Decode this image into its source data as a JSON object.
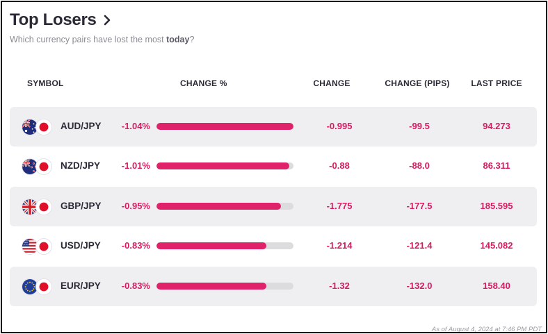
{
  "header": {
    "title": "Top Losers",
    "subtitle_prefix": "Which currency pairs have lost the most ",
    "subtitle_bold": "today",
    "subtitle_suffix": "?"
  },
  "columns": {
    "symbol": "SYMBOL",
    "change_pct": "CHANGE %",
    "change": "CHANGE",
    "change_pips": "CHANGE (PIPS)",
    "last_price": "LAST PRICE"
  },
  "colors": {
    "accent": "#e0226a",
    "negative_text": "#d81b60",
    "row_shade": "#efeff1",
    "bar_track": "#dcdcdf"
  },
  "rows": [
    {
      "symbol": "AUD/JPY",
      "base_flag": "australia-flag-icon",
      "quote_flag": "japan-flag-icon",
      "change_pct": "-1.04%",
      "bar_fraction": 1.0,
      "change": "-0.995",
      "change_pips": "-99.5",
      "last_price": "94.273"
    },
    {
      "symbol": "NZD/JPY",
      "base_flag": "new-zealand-flag-icon",
      "quote_flag": "japan-flag-icon",
      "change_pct": "-1.01%",
      "bar_fraction": 0.97,
      "change": "-0.88",
      "change_pips": "-88.0",
      "last_price": "86.311"
    },
    {
      "symbol": "GBP/JPY",
      "base_flag": "uk-flag-icon",
      "quote_flag": "japan-flag-icon",
      "change_pct": "-0.95%",
      "bar_fraction": 0.91,
      "change": "-1.775",
      "change_pips": "-177.5",
      "last_price": "185.595"
    },
    {
      "symbol": "USD/JPY",
      "base_flag": "us-flag-icon",
      "quote_flag": "japan-flag-icon",
      "change_pct": "-0.83%",
      "bar_fraction": 0.8,
      "change": "-1.214",
      "change_pips": "-121.4",
      "last_price": "145.082"
    },
    {
      "symbol": "EUR/JPY",
      "base_flag": "eu-flag-icon",
      "quote_flag": "japan-flag-icon",
      "change_pct": "-0.83%",
      "bar_fraction": 0.8,
      "change": "-1.32",
      "change_pips": "-132.0",
      "last_price": "158.40"
    }
  ],
  "footer": {
    "timestamp_text": "As of August 4, 2024 at 7:46 PM PDT"
  }
}
